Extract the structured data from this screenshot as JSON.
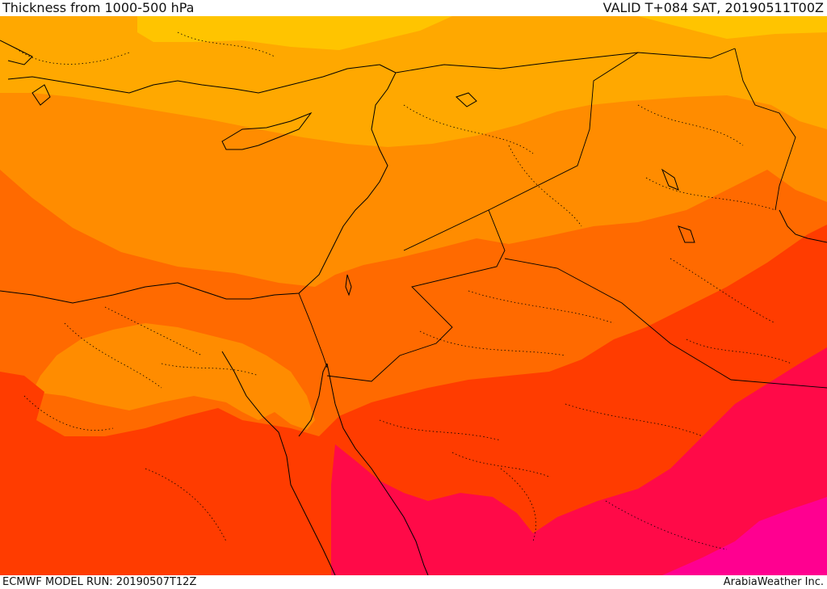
{
  "header": {
    "title": "Thickness from 1000-500 hPa",
    "valid": "VALID T+084 SAT, 20190511T00Z"
  },
  "footer": {
    "model_run": "ECMWF MODEL RUN: 20190507T12Z",
    "credit": "ArabiaWeather Inc."
  },
  "map": {
    "field_colors": {
      "band_1_yellow": "#ffc400",
      "band_2_light_orange": "#ffa800",
      "band_3_orange": "#ff8c00",
      "band_4_dark_orange": "#ff6a00",
      "band_5_red_orange": "#ff3c00",
      "band_6_crimson": "#ff0a48",
      "band_7_magenta": "#ff0090"
    },
    "coastline_color": "#000000",
    "border_style": "dotted"
  }
}
